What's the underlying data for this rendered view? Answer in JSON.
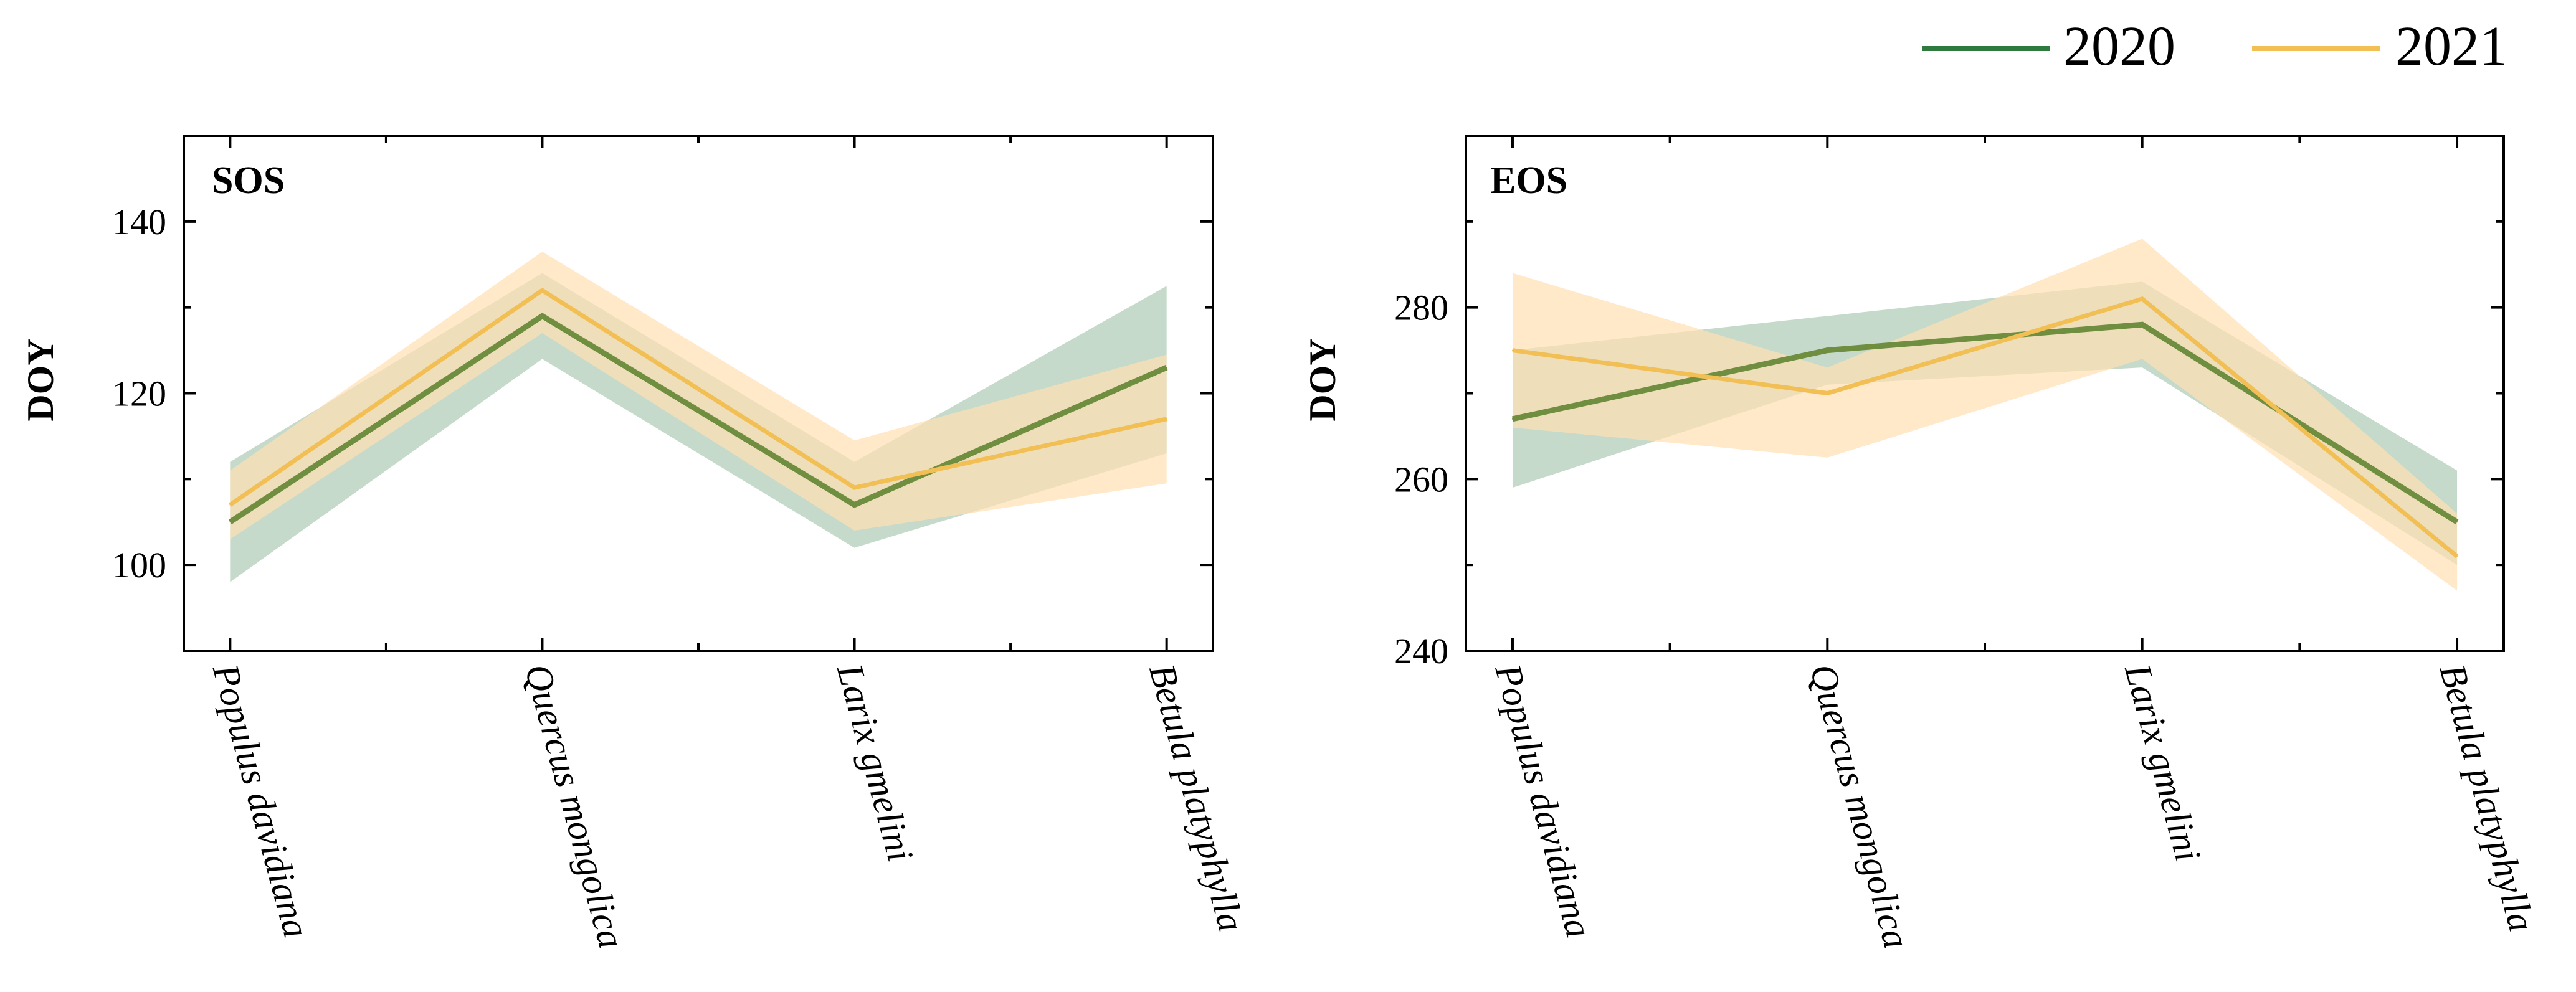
{
  "legend": {
    "position": "top-right",
    "entries": [
      {
        "label": "2020",
        "color": "#2e7a3f"
      },
      {
        "label": "2021",
        "color": "#f2bf55"
      }
    ]
  },
  "chart_data": [
    {
      "type": "line",
      "panel_label": "SOS",
      "title": "",
      "xlabel": "",
      "ylabel": "DOY",
      "categories": [
        "Populus davidiana",
        "Quercus mongolica",
        "Larix gmelini",
        "Betula platyphylla"
      ],
      "ylim": [
        90,
        150
      ],
      "yticks": [
        100,
        120,
        140
      ],
      "series": [
        {
          "name": "2020",
          "values": [
            105,
            129,
            107,
            123
          ],
          "lower": [
            98,
            124,
            102,
            113
          ],
          "upper": [
            112,
            134,
            112,
            132.5
          ],
          "line_color": "#6f8e3f",
          "band_color": "#adcbb5"
        },
        {
          "name": "2021",
          "values": [
            107,
            132,
            109,
            117
          ],
          "lower": [
            103,
            127,
            104,
            109.5
          ],
          "upper": [
            111,
            136.5,
            114.5,
            124.5
          ],
          "line_color": "#f2bf55",
          "band_color": "#ffe0b2"
        }
      ]
    },
    {
      "type": "line",
      "panel_label": "EOS",
      "title": "",
      "xlabel": "",
      "ylabel": "DOY",
      "categories": [
        "Populus davidiana",
        "Quercus mongolica",
        "Larix gmelini",
        "Betula platyphylla"
      ],
      "ylim": [
        240,
        300
      ],
      "yticks": [
        240,
        260,
        280
      ],
      "series": [
        {
          "name": "2020",
          "values": [
            267,
            275,
            278,
            255
          ],
          "lower": [
            259,
            271,
            273,
            250
          ],
          "upper": [
            275,
            279,
            283,
            261
          ],
          "line_color": "#6f8e3f",
          "band_color": "#adcbb5"
        },
        {
          "name": "2021",
          "values": [
            275,
            270,
            281,
            251
          ],
          "lower": [
            266,
            262.5,
            274,
            247
          ],
          "upper": [
            284,
            273,
            288,
            256
          ],
          "line_color": "#f2bf55",
          "band_color": "#ffe0b2"
        }
      ]
    }
  ]
}
